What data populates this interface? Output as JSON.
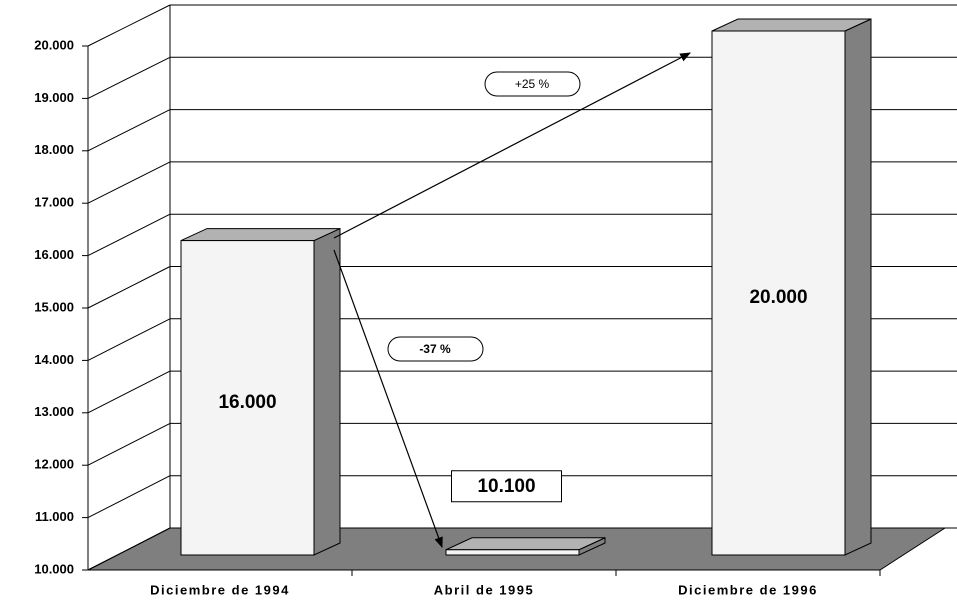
{
  "chart_data": {
    "type": "bar3d",
    "categories": [
      "Diciembre de 1994",
      "Abril de 1995",
      "Diciembre de 1996"
    ],
    "values": [
      16000,
      10100,
      20000
    ],
    "value_labels": [
      "16.000",
      "10.100",
      "20.000"
    ],
    "annotations": [
      "+25 %",
      "-37 %"
    ],
    "ylim": [
      10000,
      20000
    ],
    "yticks": [
      {
        "value": 10000,
        "label": "10.000"
      },
      {
        "value": 11000,
        "label": "11.000"
      },
      {
        "value": 12000,
        "label": "12.000"
      },
      {
        "value": 13000,
        "label": "13.000"
      },
      {
        "value": 14000,
        "label": "14.000"
      },
      {
        "value": 15000,
        "label": "15.000"
      },
      {
        "value": 16000,
        "label": "16.000"
      },
      {
        "value": 17000,
        "label": "17.000"
      },
      {
        "value": 18000,
        "label": "18.000"
      },
      {
        "value": 19000,
        "label": "19.000"
      },
      {
        "value": 20000,
        "label": "20.000"
      }
    ],
    "grid": true,
    "color": "#f4f4f4"
  }
}
